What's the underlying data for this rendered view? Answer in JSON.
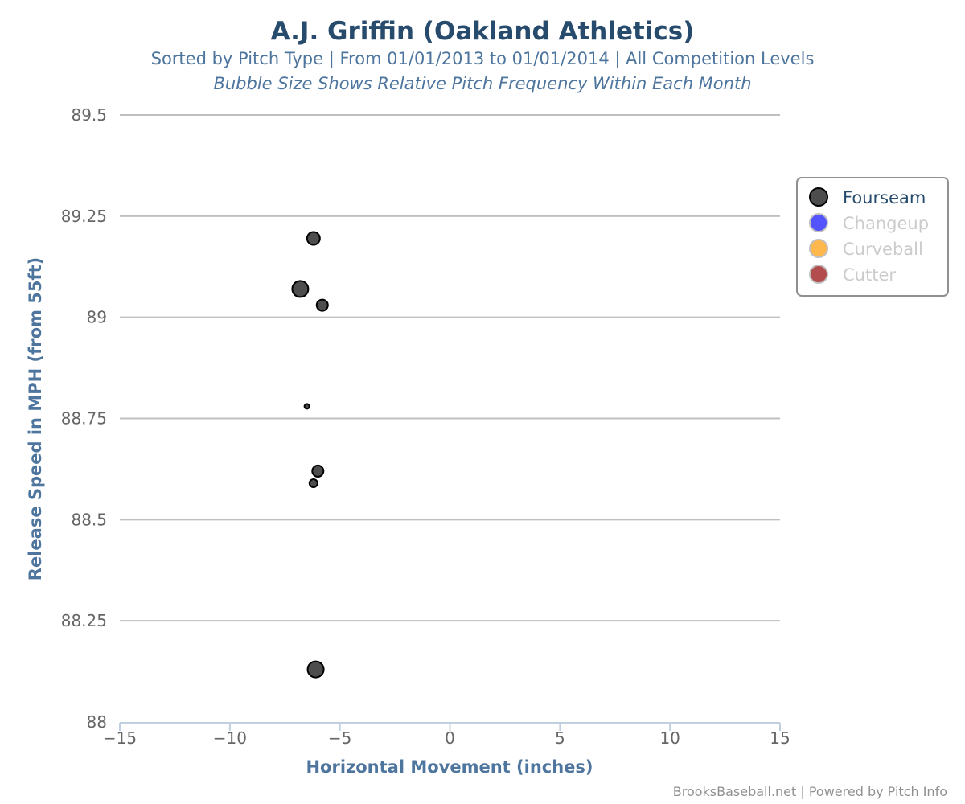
{
  "chart_data": {
    "type": "scatter",
    "title": "A.J. Griffin (Oakland Athletics)",
    "subtitle": "Sorted by Pitch Type | From 01/01/2013 to 01/01/2014 | All Competition Levels",
    "subtitle2": "Bubble Size Shows Relative Pitch Frequency Within Each Month",
    "xlabel": "Horizontal Movement (inches)",
    "ylabel": "Release Speed in MPH (from 55ft)",
    "xlim": [
      -15,
      15
    ],
    "ylim": [
      88,
      89.5
    ],
    "x_ticks": [
      -15,
      -10,
      -5,
      0,
      5,
      10,
      15
    ],
    "x_tick_labels": [
      "−15",
      "−10",
      "−5",
      "0",
      "5",
      "10",
      "15"
    ],
    "y_ticks": [
      88,
      88.25,
      88.5,
      88.75,
      89,
      89.25,
      89.5
    ],
    "y_tick_labels": [
      "88",
      "88.25",
      "88.5",
      "88.75",
      "89",
      "89.25",
      "89.5"
    ],
    "grid": "horizontal",
    "legend_position": "right",
    "series": [
      {
        "name": "Fourseam",
        "color": "#4d4d4d",
        "active": true,
        "points": [
          {
            "x": -6.2,
            "y": 89.195,
            "size": 8
          },
          {
            "x": -6.8,
            "y": 89.07,
            "size": 10
          },
          {
            "x": -5.8,
            "y": 89.03,
            "size": 7
          },
          {
            "x": -6.5,
            "y": 88.78,
            "size": 3
          },
          {
            "x": -6.0,
            "y": 88.62,
            "size": 7
          },
          {
            "x": -6.2,
            "y": 88.59,
            "size": 5
          },
          {
            "x": -6.1,
            "y": 88.13,
            "size": 10
          }
        ]
      },
      {
        "name": "Changeup",
        "color": "#5454ff",
        "active": false,
        "points": []
      },
      {
        "name": "Curveball",
        "color": "#ffb84d",
        "active": false,
        "points": []
      },
      {
        "name": "Cutter",
        "color": "#b34d4d",
        "active": false,
        "points": []
      }
    ],
    "credits": "BrooksBaseball.net | Powered by Pitch Info"
  }
}
